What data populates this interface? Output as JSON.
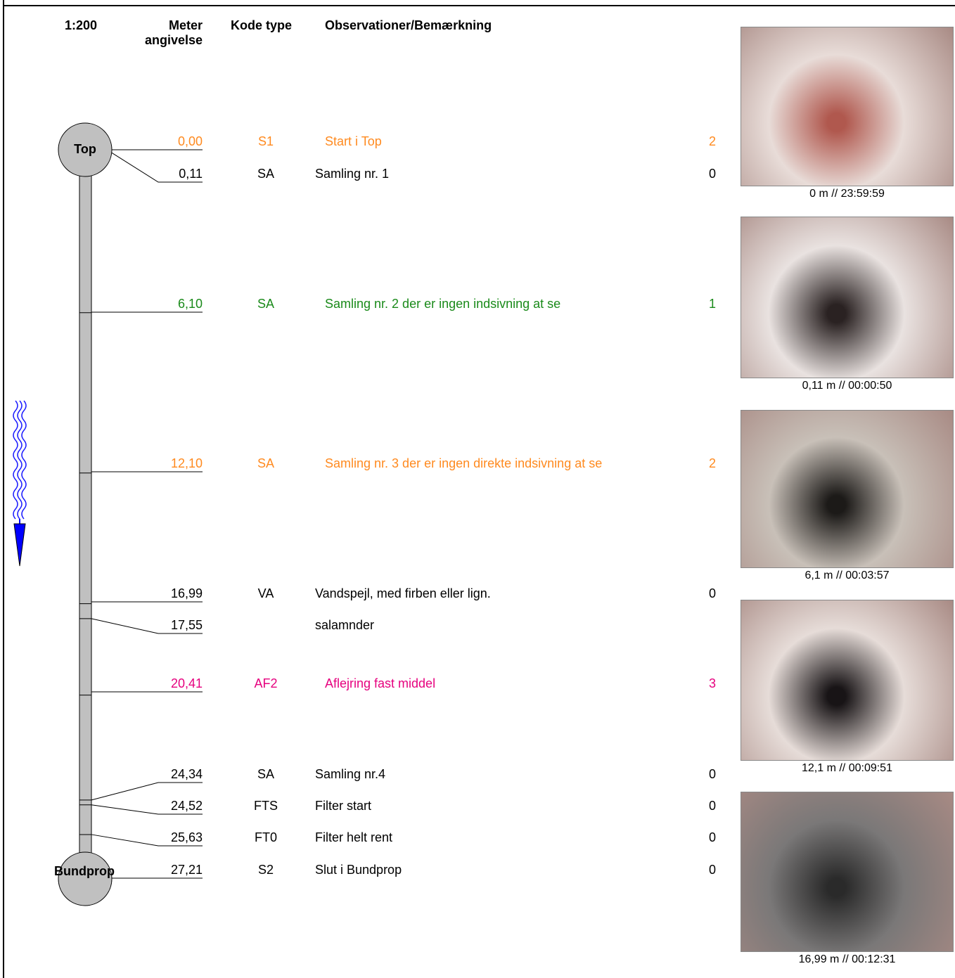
{
  "header": {
    "scale": "1:200",
    "meter": "Meter angivelse",
    "code": "Kode type",
    "remarks": "Observationer/Bemærkning"
  },
  "nodes": {
    "top": "Top",
    "bottom": "Bundprop"
  },
  "rows": [
    {
      "meter": "0,00",
      "code": "S1",
      "text": "Start i Top",
      "grade": 2,
      "color": "#ff8a1f"
    },
    {
      "meter": "0,11",
      "code": "SA",
      "text": "Samling nr. 1",
      "grade": 0,
      "color": "#000000"
    },
    {
      "meter": "6,10",
      "code": "SA",
      "text": "Samling nr. 2 der er ingen indsivning at se",
      "grade": 1,
      "color": "#1a8a1a"
    },
    {
      "meter": "12,10",
      "code": "SA",
      "text": "Samling nr. 3 der er ingen direkte indsivning at se",
      "grade": 2,
      "color": "#ff8a1f"
    },
    {
      "meter": "16,99",
      "code": "VA",
      "text": "Vandspejl, med firben eller lign.",
      "grade": 0,
      "color": "#000000"
    },
    {
      "meter": "17,55",
      "text": "salamnder",
      "color": "#000000"
    },
    {
      "meter": "20,41",
      "code": "AF2",
      "text": "Aflejring fast  middel",
      "grade": 3,
      "color": "#e6007e"
    },
    {
      "meter": "24,34",
      "code": "SA",
      "text": "Samling nr.4",
      "grade": 0,
      "color": "#000000"
    },
    {
      "meter": "24,52",
      "code": "FTS",
      "text": "Filter start",
      "grade": 0,
      "color": "#000000"
    },
    {
      "meter": "25,63",
      "code": "FT0",
      "text": "Filter helt rent",
      "grade": 0,
      "color": "#000000"
    },
    {
      "meter": "27,21",
      "code": "S2",
      "text": "Slut i Bundprop",
      "grade": 0,
      "color": "#000000"
    }
  ],
  "photos": [
    {
      "caption": "0 m // 23:59:59"
    },
    {
      "caption": "0,11 m // 00:00:50"
    },
    {
      "caption": "6,1 m // 00:03:57"
    },
    {
      "caption": "12,1 m // 00:09:51"
    },
    {
      "caption": "16,99 m // 00:12:31"
    }
  ]
}
